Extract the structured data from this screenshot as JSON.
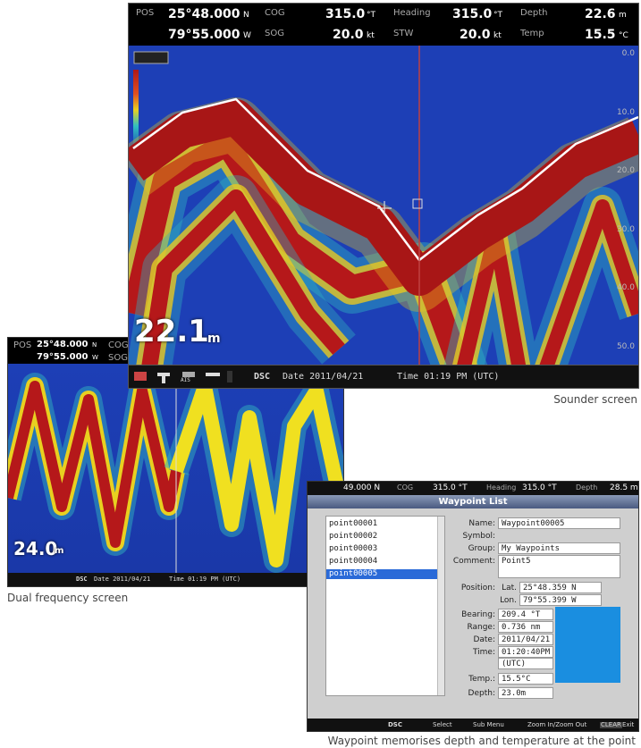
{
  "sounder": {
    "header": {
      "pos_label": "POS",
      "lat": "25°48.000",
      "lat_unit": "N",
      "lon": "79°55.000",
      "lon_unit": "W",
      "cog_label": "COG",
      "cog": "315.0",
      "cog_unit": "°T",
      "sog_label": "SOG",
      "sog": "20.0",
      "sog_unit": "kt",
      "heading_label": "Heading",
      "heading": "315.0",
      "heading_unit": "°T",
      "stw_label": "STW",
      "stw": "20.0",
      "stw_unit": "kt",
      "depth_label": "Depth",
      "depth": "22.6",
      "depth_unit": "m",
      "temp_label": "Temp",
      "temp": "15.5",
      "temp_unit": "°C"
    },
    "scale": [
      "0.0",
      "10.0",
      "20.0",
      "30.0",
      "40.0",
      "50.0"
    ],
    "depth_readout": "22.1",
    "depth_readout_unit": "m",
    "footer": {
      "ais": "AIS",
      "dsc": "DSC",
      "date": "Date 2011/04/21",
      "time": "Time 01:19 PM (UTC)"
    },
    "caption": "Sounder screen"
  },
  "dual": {
    "header": {
      "pos_label": "POS",
      "lat": "25°48.000",
      "lat_unit": "N",
      "lon": "79°55.000",
      "lon_unit": "W",
      "cog_label": "COG",
      "sog_label": "SOG"
    },
    "depth_readout": "24.0",
    "depth_readout_unit": "m",
    "footer": {
      "dsc": "DSC",
      "date": "Date 2011/04/21",
      "time": "Time 01:19 PM (UTC)"
    },
    "caption": "Dual frequency screen"
  },
  "waypoint": {
    "header": {
      "lat": "49.000 N",
      "cog_label": "COG",
      "cog": "315.0 °T",
      "heading_label": "Heading",
      "heading": "315.0 °T",
      "depth_label": "Depth",
      "depth": "28.5 m"
    },
    "title": "Waypoint List",
    "list": [
      "point00001",
      "point00002",
      "point00003",
      "point00004",
      "point00005"
    ],
    "form": {
      "name_label": "Name:",
      "name": "Waypoint00005",
      "symbol_label": "Symbol:",
      "group_label": "Group:",
      "group": "My Waypoints",
      "comment_label": "Comment:",
      "comment": "Point5",
      "position_label": "Position:",
      "lat_label": "Lat.",
      "lat": "25°48.359 N",
      "lon_label": "Lon.",
      "lon": "79°55.399 W",
      "bearing_label": "Bearing:",
      "bearing": "209.4 °T",
      "range_label": "Range:",
      "range": "0.736 nm",
      "date_label": "Date:",
      "date": "2011/04/21",
      "time_label": "Time:",
      "time": "01:20:40PM",
      "time_zone": "(UTC)",
      "temp_label": "Temp.:",
      "temp": "15.5°C",
      "depth_label": "Depth:",
      "depth": "23.0m"
    },
    "footer": {
      "dsc": "DSC",
      "select": "Select",
      "sub_menu": "Sub Menu",
      "zoom": "Zoom In/Zoom Out",
      "clear": "CLEAR",
      "exit": "Exit"
    },
    "caption": "Waypoint memorises depth and temperature at the point"
  }
}
